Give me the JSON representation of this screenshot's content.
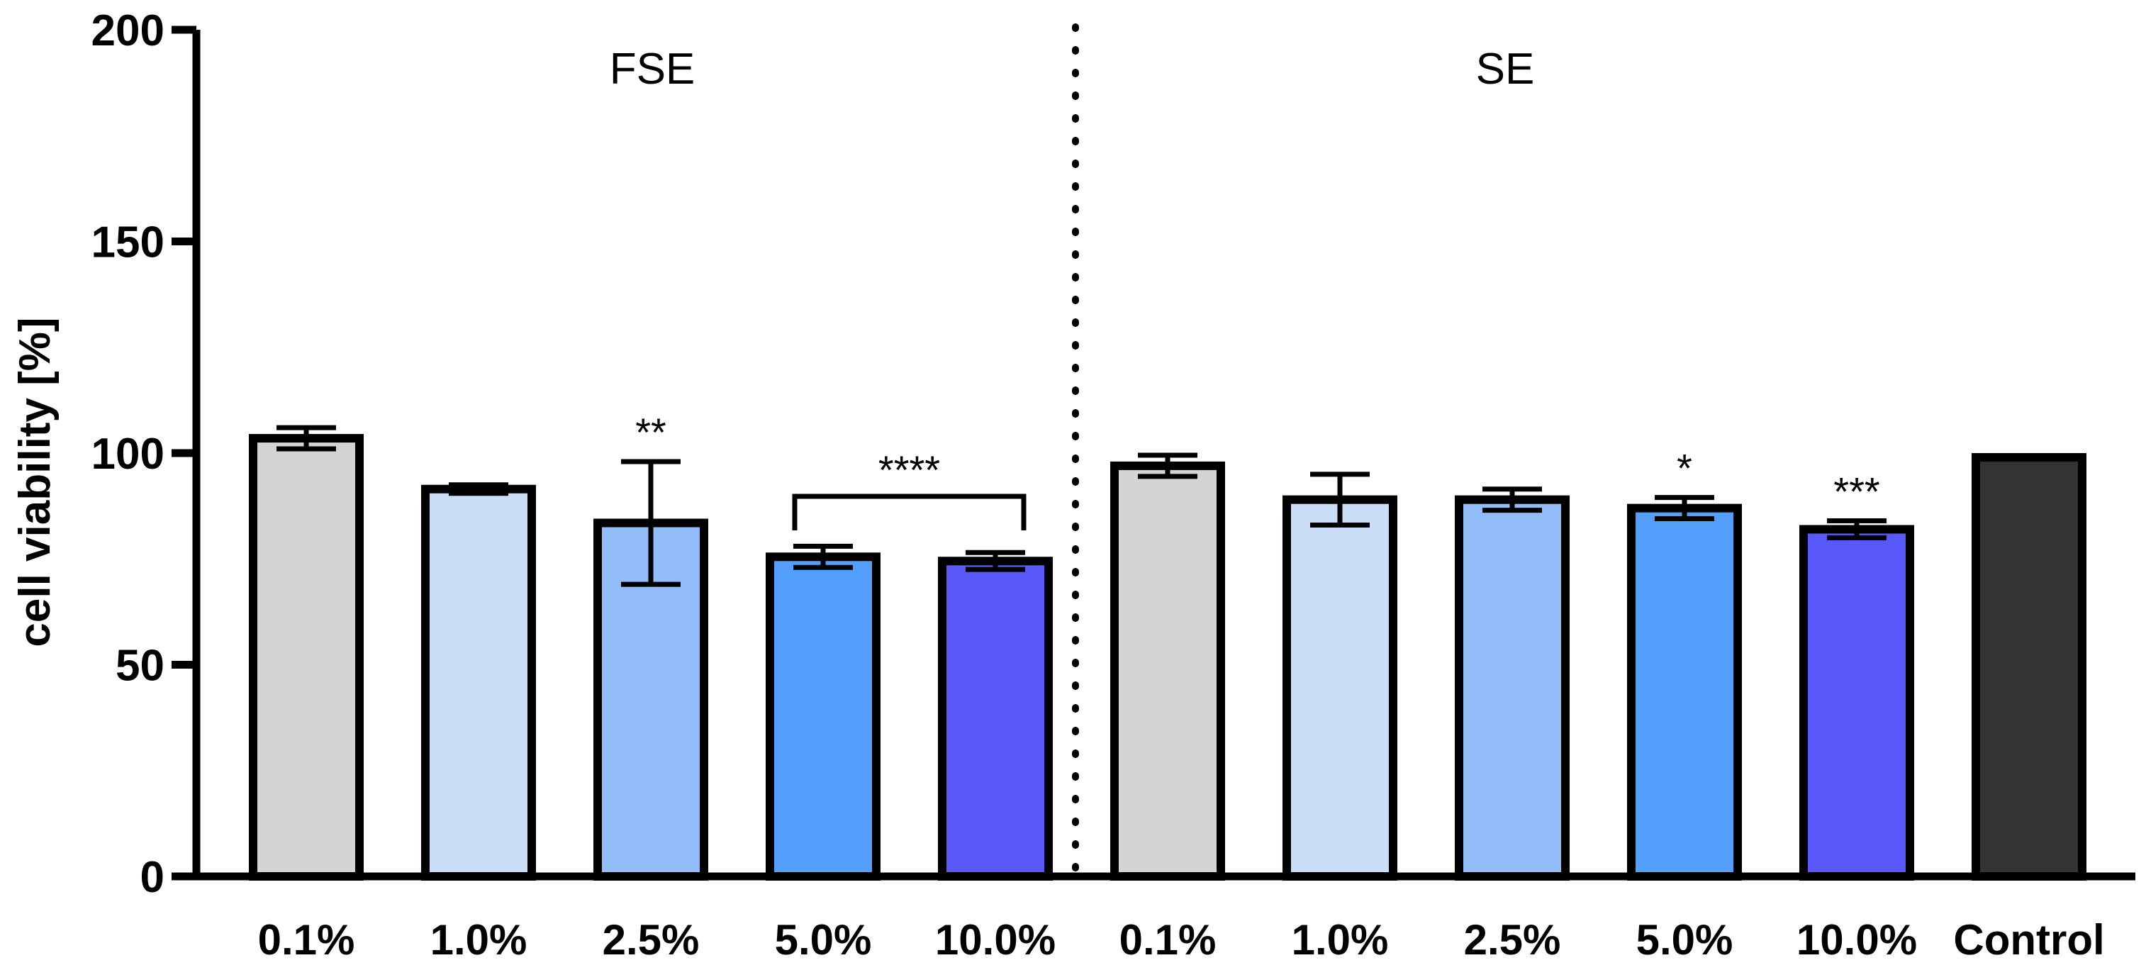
{
  "chart_data": {
    "type": "bar",
    "title": "",
    "xlabel": "",
    "ylabel": "cell viability [%]",
    "ylim": [
      0,
      200
    ],
    "yticks": [
      "0",
      "50",
      "100",
      "150",
      "200"
    ],
    "groups": [
      {
        "label": "FSE",
        "categories": [
          "0.1%",
          "1.0%",
          "2.5%",
          "5.0%",
          "10.0%"
        ]
      },
      {
        "label": "SE",
        "categories": [
          "0.1%",
          "1.0%",
          "2.5%",
          "5.0%",
          "10.0%"
        ]
      }
    ],
    "categories": [
      "0.1%",
      "1.0%",
      "2.5%",
      "5.0%",
      "10.0%",
      "0.1%",
      "1.0%",
      "2.5%",
      "5.0%",
      "10.0%",
      "Control"
    ],
    "values": [
      103.5,
      91.5,
      83.5,
      75.5,
      74.5,
      97,
      89,
      89,
      87,
      82,
      99
    ],
    "errors": [
      2.5,
      1,
      14.5,
      2.5,
      2,
      2.5,
      6,
      2.5,
      2.5,
      2,
      0
    ],
    "bar_colors": [
      "#d4d4d4",
      "#cadeF7",
      "#92bdf8",
      "#559ffc",
      "#5858fb",
      "#d4d4d4",
      "#cadef7",
      "#92bdf8",
      "#559ffc",
      "#5858fb",
      "#333333"
    ],
    "significance": [
      "",
      "",
      "**",
      "",
      "",
      "",
      "",
      "",
      "*",
      "***",
      ""
    ],
    "bracket": {
      "label": "****",
      "from_index": 3,
      "to_index": 4
    }
  }
}
